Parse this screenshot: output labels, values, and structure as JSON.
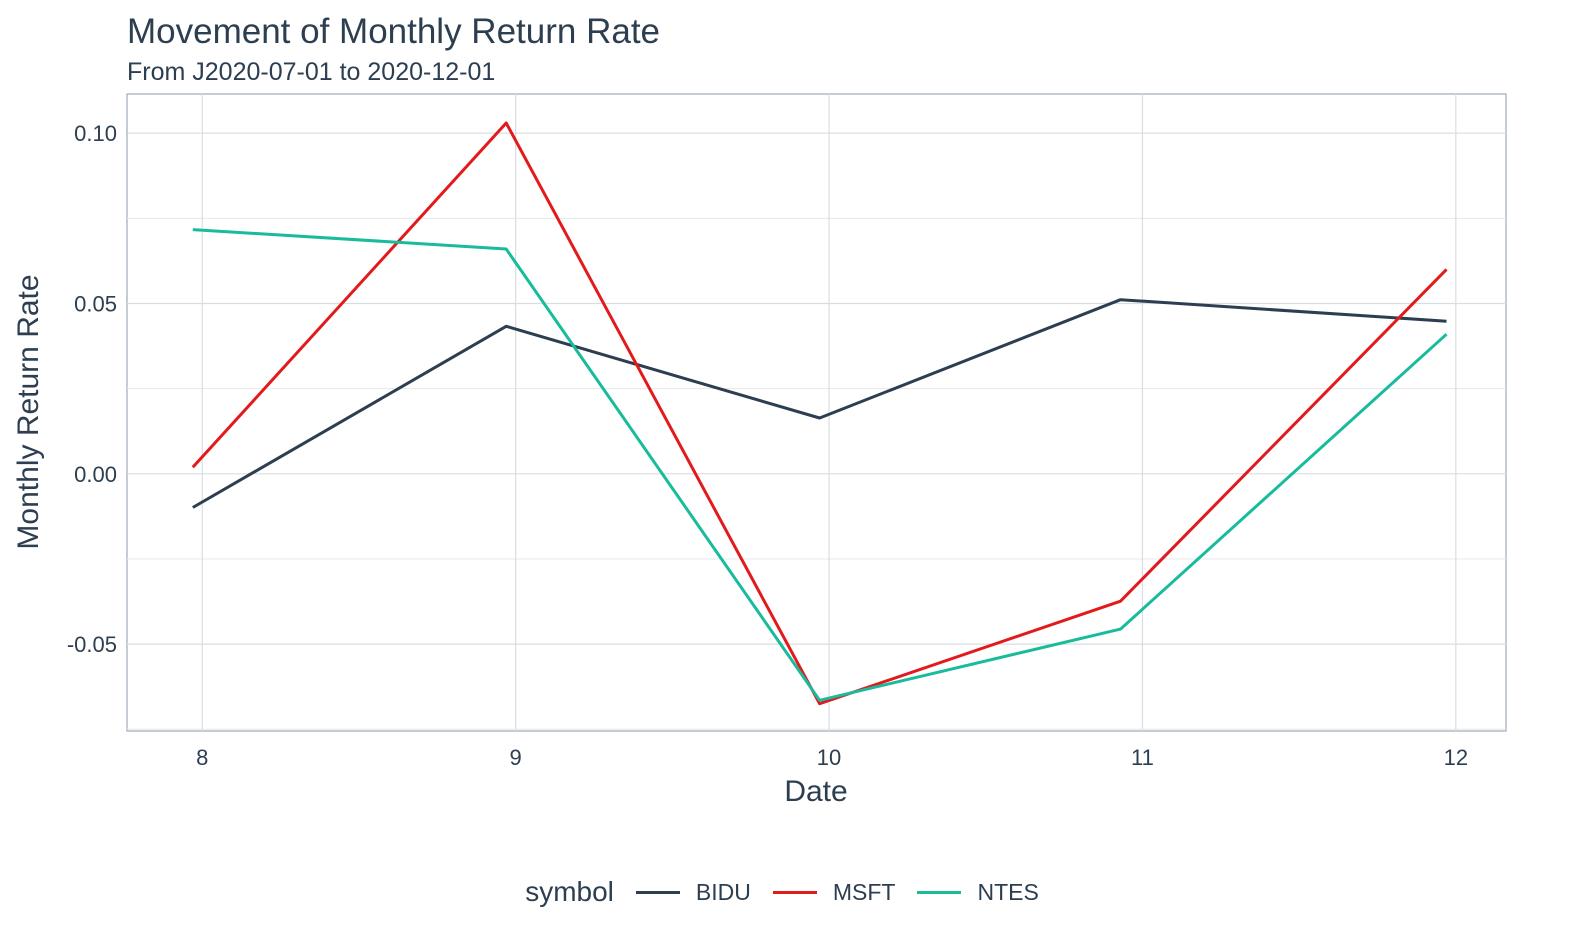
{
  "chart_data": {
    "type": "line",
    "title": "Movement of Monthly Return Rate",
    "subtitle": "From J2020-07-01 to 2020-12-01",
    "xlabel": "Date",
    "ylabel": "Monthly Return Rate",
    "x": [
      8,
      9,
      10,
      11,
      12
    ],
    "x_ticks": [
      "8",
      "9",
      "10",
      "11",
      "12"
    ],
    "y_ticks": [
      "0.10",
      "0.05",
      "0.00",
      "-0.05"
    ],
    "xlim": [
      7.76,
      12.16
    ],
    "ylim": [
      -0.0755,
      0.1115
    ],
    "grid": true,
    "legend_position": "bottom",
    "legend_title": "symbol",
    "series": [
      {
        "name": "BIDU",
        "color": "#2c3e50",
        "x": [
          7.97,
          8.97,
          9.97,
          10.93,
          11.97
        ],
        "values": [
          -0.0099,
          0.0433,
          0.0164,
          0.0511,
          0.0448
        ]
      },
      {
        "name": "MSFT",
        "color": "#e31a1c",
        "x": [
          7.97,
          8.97,
          9.97,
          10.93,
          11.97
        ],
        "values": [
          0.0019,
          0.103,
          -0.0675,
          -0.0374,
          0.06
        ]
      },
      {
        "name": "NTES",
        "color": "#18bc9c",
        "x": [
          7.97,
          8.97,
          9.97,
          10.93,
          11.97
        ],
        "values": [
          0.0717,
          0.066,
          -0.0665,
          -0.0456,
          0.041
        ]
      }
    ]
  }
}
